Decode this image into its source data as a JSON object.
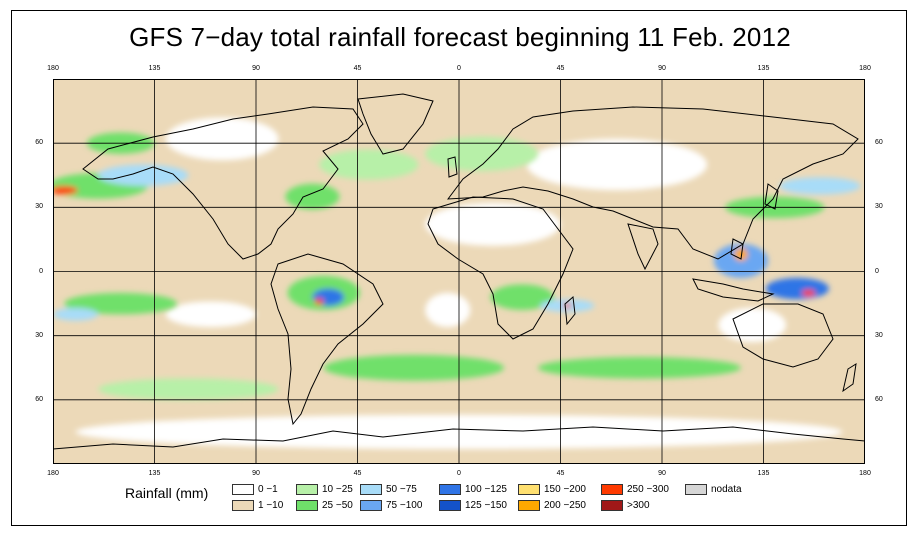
{
  "title": "GFS 7−day total rainfall forecast beginning 11 Feb. 2012",
  "top_lon_labels": [
    "180",
    "135",
    "90",
    "45",
    "0",
    "45",
    "90",
    "135",
    "180"
  ],
  "bottom_lon_labels": [
    "180",
    "135",
    "90",
    "45",
    "0",
    "45",
    "90",
    "135",
    "180"
  ],
  "left_lat_labels": [
    "60",
    "30",
    "0",
    "30",
    "60"
  ],
  "right_lat_labels": [
    "60",
    "30",
    "0",
    "30",
    "60"
  ],
  "legend": {
    "title": "Rainfall (mm)",
    "items": [
      {
        "label": "0 −1",
        "color": "#ffffff"
      },
      {
        "label": "1 −10",
        "color": "#ecd9b8"
      },
      {
        "label": "10 −25",
        "color": "#b7f0a8"
      },
      {
        "label": "25 −50",
        "color": "#6fe06a"
      },
      {
        "label": "50 −75",
        "color": "#a8dcf8"
      },
      {
        "label": "75 −100",
        "color": "#6aa7f2"
      },
      {
        "label": "100 −125",
        "color": "#2f74e6"
      },
      {
        "label": "125 −150",
        "color": "#1452c8"
      },
      {
        "label": "150 −200",
        "color": "#ffe070"
      },
      {
        "label": "200 −250",
        "color": "#ffa800"
      },
      {
        "label": "250 −300",
        "color": "#ff3a00"
      },
      {
        "label": ">300",
        "color": "#a01818"
      },
      {
        "label": "nodata",
        "color": "#d6d6d6"
      }
    ]
  },
  "map": {
    "lon_range": [
      -180,
      180
    ],
    "lat_range": [
      -90,
      90
    ],
    "graticule_lons": [
      -135,
      -90,
      -45,
      0,
      45,
      90,
      135
    ],
    "graticule_lats": [
      60,
      30,
      0,
      -30,
      -60
    ],
    "ocean_color": "#ecd9b8",
    "rain_zones": [
      {
        "lon": -160,
        "lat": 40,
        "rlon": 22,
        "rlat": 6,
        "color": "#6fe06a"
      },
      {
        "lon": -140,
        "lat": 45,
        "rlon": 20,
        "rlat": 5,
        "color": "#a8dcf8"
      },
      {
        "lon": -175,
        "lat": 38,
        "rlon": 6,
        "rlat": 2,
        "color": "#ff3a00"
      },
      {
        "lon": -40,
        "lat": 50,
        "rlon": 22,
        "rlat": 7,
        "color": "#b7f0a8"
      },
      {
        "lon": -65,
        "lat": 35,
        "rlon": 12,
        "rlat": 6,
        "color": "#6fe06a"
      },
      {
        "lon": 10,
        "lat": 55,
        "rlon": 25,
        "rlat": 8,
        "color": "#b7f0a8"
      },
      {
        "lon": 140,
        "lat": 30,
        "rlon": 22,
        "rlat": 5,
        "color": "#6fe06a"
      },
      {
        "lon": 160,
        "lat": 40,
        "rlon": 18,
        "rlat": 4,
        "color": "#a8dcf8"
      },
      {
        "lon": -60,
        "lat": -10,
        "rlon": 16,
        "rlat": 8,
        "color": "#6fe06a"
      },
      {
        "lon": -58,
        "lat": -12,
        "rlon": 7,
        "rlat": 4,
        "color": "#2f74e6"
      },
      {
        "lon": -62,
        "lat": -14,
        "rlon": 2,
        "rlat": 1.5,
        "color": "#ff3a00"
      },
      {
        "lon": 28,
        "lat": -12,
        "rlon": 14,
        "rlat": 6,
        "color": "#6fe06a"
      },
      {
        "lon": 48,
        "lat": -16,
        "rlon": 12,
        "rlat": 3,
        "color": "#a8dcf8"
      },
      {
        "lon": 48,
        "lat": -16,
        "rlon": 2,
        "rlat": 1,
        "color": "#ff3a00"
      },
      {
        "lon": 125,
        "lat": 5,
        "rlon": 12,
        "rlat": 8,
        "color": "#6aa7f2"
      },
      {
        "lon": 125,
        "lat": 8,
        "rlon": 3,
        "rlat": 3,
        "color": "#ffa800"
      },
      {
        "lon": 150,
        "lat": -8,
        "rlon": 14,
        "rlat": 5,
        "color": "#2f74e6"
      },
      {
        "lon": 155,
        "lat": -10,
        "rlon": 3,
        "rlat": 1.5,
        "color": "#ff3a00"
      },
      {
        "lon": -150,
        "lat": -15,
        "rlon": 25,
        "rlat": 5,
        "color": "#6fe06a"
      },
      {
        "lon": -170,
        "lat": -20,
        "rlon": 10,
        "rlat": 3,
        "color": "#a8dcf8"
      },
      {
        "lon": -20,
        "lat": -45,
        "rlon": 40,
        "rlat": 6,
        "color": "#6fe06a"
      },
      {
        "lon": 80,
        "lat": -45,
        "rlon": 45,
        "rlat": 5,
        "color": "#6fe06a"
      },
      {
        "lon": -120,
        "lat": -55,
        "rlon": 40,
        "rlat": 5,
        "color": "#b7f0a8"
      },
      {
        "lon": -150,
        "lat": 60,
        "rlon": 15,
        "rlat": 5,
        "color": "#6fe06a"
      }
    ],
    "dry_zones": [
      {
        "lon": 15,
        "lat": 22,
        "rlon": 30,
        "rlat": 10
      },
      {
        "lon": 70,
        "lat": 50,
        "rlon": 40,
        "rlat": 12
      },
      {
        "lon": -105,
        "lat": 62,
        "rlon": 25,
        "rlat": 10
      },
      {
        "lon": 0,
        "lat": -75,
        "rlon": 170,
        "rlat": 8
      },
      {
        "lon": -110,
        "lat": -20,
        "rlon": 20,
        "rlat": 6
      },
      {
        "lon": -5,
        "lat": -18,
        "rlon": 10,
        "rlat": 8
      },
      {
        "lon": 130,
        "lat": -25,
        "rlon": 15,
        "rlat": 8
      }
    ]
  }
}
